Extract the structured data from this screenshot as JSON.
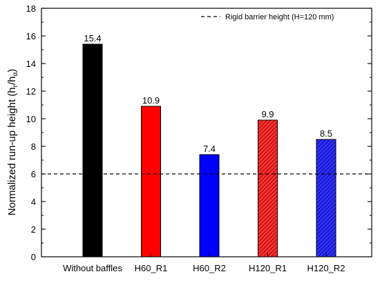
{
  "chart_data": {
    "type": "bar",
    "categories": [
      "Without baffles",
      "H60_R1",
      "H60_R2",
      "H120_R1",
      "H120_R2"
    ],
    "values": [
      15.4,
      10.9,
      7.4,
      9.9,
      8.5
    ],
    "value_labels": [
      "15.4",
      "10.9",
      "7.4",
      "9.9",
      "8.5"
    ],
    "bar_colors": [
      "#000000",
      "#ff0000",
      "#0000ff",
      "#e01010",
      "#1010e0"
    ],
    "bar_hatched": [
      false,
      false,
      false,
      true,
      true
    ],
    "ylabel_main": "Normalized run-up height (h",
    "ylabel_sub1": "r",
    "ylabel_mid": "/h",
    "ylabel_sub2": "α",
    "ylabel_end": ")",
    "ylim": [
      0,
      18
    ],
    "yticks": [
      0,
      2,
      4,
      6,
      8,
      10,
      12,
      14,
      16,
      18
    ],
    "reference_line": {
      "value": 6,
      "label": "Rigid barrier height (H=120 mm)"
    },
    "legend_position": "top-right",
    "grid": false
  }
}
